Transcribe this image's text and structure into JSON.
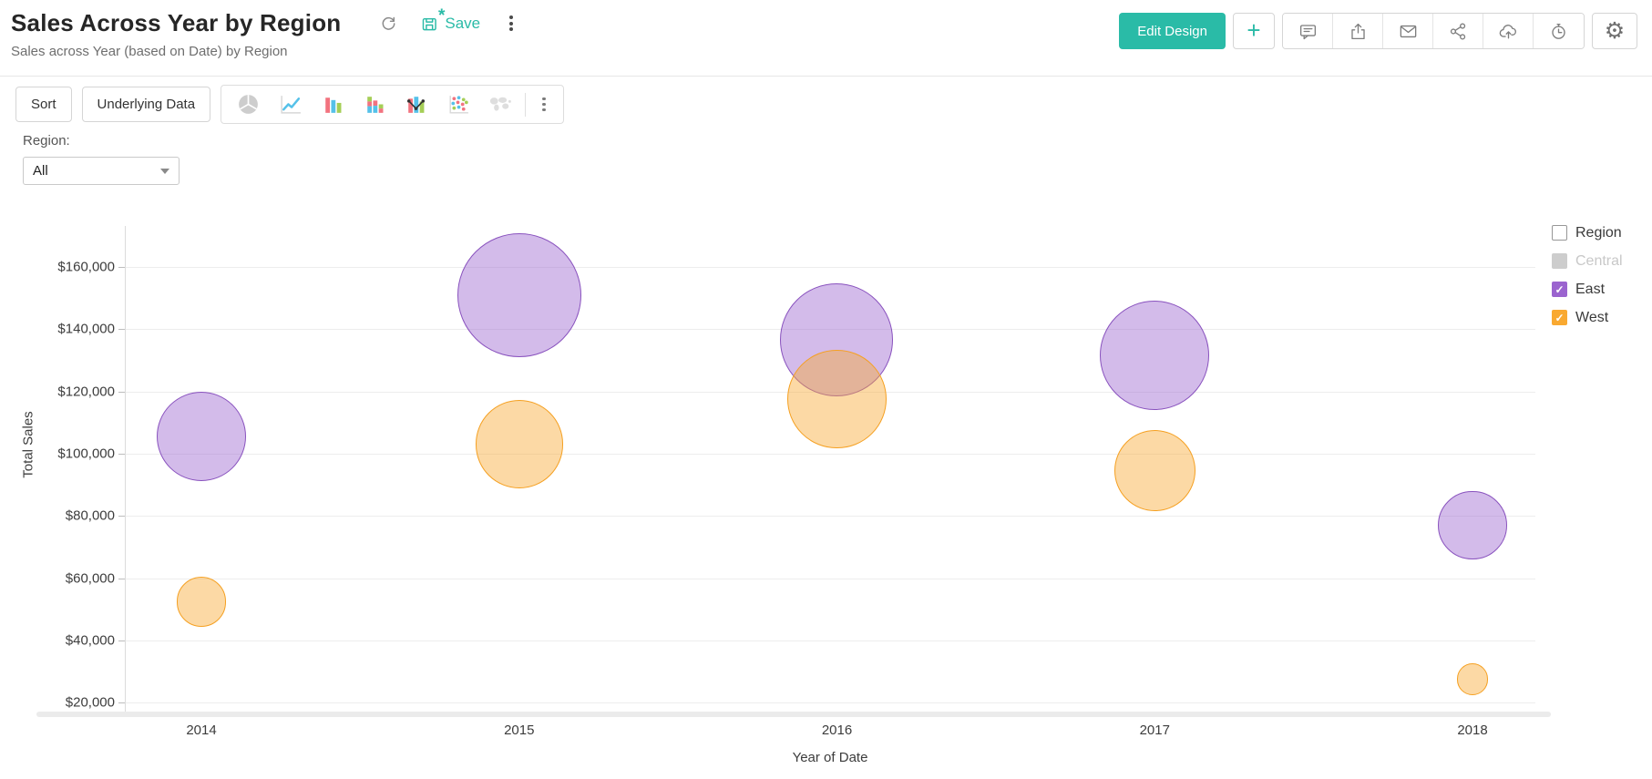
{
  "header": {
    "title": "Sales Across Year by Region",
    "subtitle": "Sales across Year (based on Date) by Region",
    "save_label": "Save",
    "edit_design_label": "Edit Design",
    "accent_color": "#2ABBA7"
  },
  "toolbar": {
    "sort_label": "Sort",
    "underlying_data_label": "Underlying Data",
    "chart_types": [
      "pie",
      "line",
      "bar",
      "stacked-bar",
      "bar-line-combo",
      "bubble",
      "map"
    ]
  },
  "filter": {
    "label": "Region:",
    "value": "All"
  },
  "legend": {
    "title": "Region",
    "items": [
      {
        "label": "Central",
        "color": "#CDCDCD",
        "checked": false,
        "disabled": true
      },
      {
        "label": "East",
        "color": "#9B64CF",
        "checked": true,
        "disabled": false
      },
      {
        "label": "West",
        "color": "#F9A931",
        "checked": true,
        "disabled": false
      }
    ]
  },
  "chart_data": {
    "type": "scatter",
    "subtype": "bubble",
    "title": "Sales Across Year by Region",
    "x": [
      2014,
      2015,
      2016,
      2017,
      2018
    ],
    "xlabel": "Year of Date",
    "ylabel": "Total Sales",
    "y_ticks": [
      20000,
      40000,
      60000,
      80000,
      100000,
      120000,
      140000,
      160000
    ],
    "y_tick_labels": [
      "$20,000",
      "$40,000",
      "$60,000",
      "$80,000",
      "$100,000",
      "$120,000",
      "$140,000",
      "$160,000"
    ],
    "ylim": [
      15000,
      172500
    ],
    "size_encoding": "Total Sales",
    "legend_position": "right",
    "grid": true,
    "series": [
      {
        "name": "East",
        "color": "#9B64CF",
        "stroke": "#8952BE",
        "values": [
          105500,
          151000,
          136500,
          131500,
          77000
        ]
      },
      {
        "name": "West",
        "color": "#F9A931",
        "stroke": "#F5A021",
        "values": [
          52500,
          103000,
          117500,
          94500,
          27500
        ]
      }
    ]
  }
}
